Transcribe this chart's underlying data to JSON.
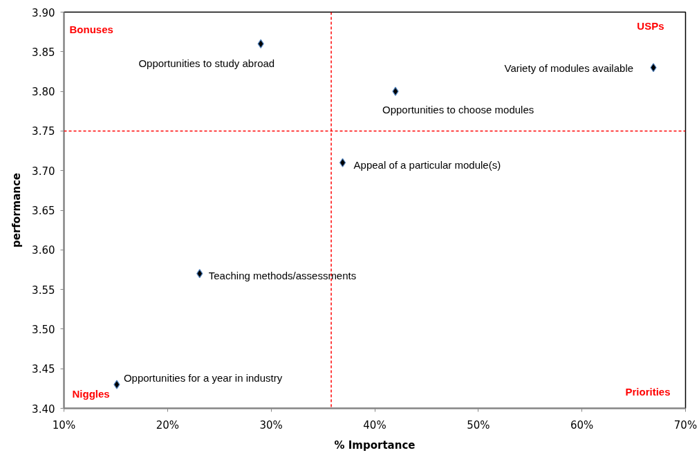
{
  "chart_data": {
    "type": "scatter",
    "xlabel": "% Importance",
    "ylabel": "performance",
    "x": [
      29.0,
      66.9,
      42.0,
      36.9,
      23.1,
      15.1
    ],
    "values": [
      3.86,
      3.83,
      3.8,
      3.71,
      3.57,
      3.43
    ],
    "color": "#000000",
    "marker": "diamond",
    "xlim": [
      10,
      70
    ],
    "xticks": [
      {
        "value": 10,
        "label": "10%"
      },
      {
        "value": 20,
        "label": "20%"
      },
      {
        "value": 30,
        "label": "30%"
      },
      {
        "value": 40,
        "label": "40%"
      },
      {
        "value": 50,
        "label": "50%"
      },
      {
        "value": 60,
        "label": "60%"
      },
      {
        "value": 70,
        "label": "70%"
      }
    ],
    "ylim": [
      3.4,
      3.9
    ],
    "yticks": [
      {
        "value": 3.4,
        "label": "3.40"
      },
      {
        "value": 3.45,
        "label": "3.45"
      },
      {
        "value": 3.5,
        "label": "3.50"
      },
      {
        "value": 3.55,
        "label": "3.55"
      },
      {
        "value": 3.6,
        "label": "3.60"
      },
      {
        "value": 3.65,
        "label": "3.65"
      },
      {
        "value": 3.7,
        "label": "3.70"
      },
      {
        "value": 3.75,
        "label": "3.75"
      },
      {
        "value": 3.8,
        "label": "3.80"
      },
      {
        "value": 3.85,
        "label": "3.85"
      },
      {
        "value": 3.9,
        "label": "3.90"
      }
    ],
    "grid": false,
    "ref_lines": [
      {
        "axis": "x",
        "value": 35.8,
        "color": "#ff0000",
        "line_style": "dashed"
      },
      {
        "axis": "y",
        "value": 3.75,
        "color": "#ff0000",
        "line_style": "dashed"
      }
    ],
    "annotations": [
      "Bonuses",
      "USPs",
      "Niggles",
      "Priorities",
      {
        "text": "Opportunities to study abroad",
        "x": 29.0,
        "y": 3.86
      },
      {
        "text": "Variety of modules available",
        "x": 66.9,
        "y": 3.83
      },
      {
        "text": "Opportunities to choose modules",
        "x": 42.0,
        "y": 3.8
      },
      {
        "text": "Appeal of a particular module(s)",
        "x": 36.9,
        "y": 3.71
      },
      {
        "text": "Teaching methods/assessments",
        "x": 23.1,
        "y": 3.57
      },
      {
        "text": "Opportunities for a year in industry",
        "x": 15.1,
        "y": 3.43
      }
    ]
  }
}
